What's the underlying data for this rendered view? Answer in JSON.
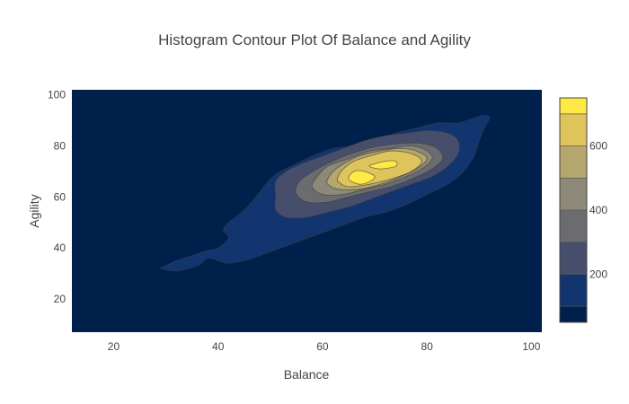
{
  "chart_data": {
    "type": "contour",
    "title": "Histogram Contour Plot Of Balance and Agility",
    "xlabel": "Balance",
    "ylabel": "Agility",
    "xlim": [
      12,
      102
    ],
    "ylim": [
      7,
      102
    ],
    "xticks": [
      "20",
      "40",
      "60",
      "80",
      "100"
    ],
    "xtick_values": [
      20,
      40,
      60,
      80,
      100
    ],
    "yticks": [
      "20",
      "40",
      "60",
      "80",
      "100"
    ],
    "ytick_values": [
      20,
      40,
      60,
      80,
      100
    ],
    "colorscale": "cividis",
    "colorbar": {
      "range": [
        50,
        750
      ],
      "ticks": [
        "200",
        "400",
        "600"
      ],
      "tick_values": [
        200,
        400,
        600
      ],
      "bands": [
        {
          "from": 50,
          "to": 100,
          "color": "#00204c"
        },
        {
          "from": 100,
          "to": 200,
          "color": "#123570"
        },
        {
          "from": 200,
          "to": 300,
          "color": "#474e6c"
        },
        {
          "from": 300,
          "to": 400,
          "color": "#6b6c70"
        },
        {
          "from": 400,
          "to": 500,
          "color": "#8d8877"
        },
        {
          "from": 500,
          "to": 600,
          "color": "#b4a66d"
        },
        {
          "from": 600,
          "to": 700,
          "color": "#dfc45c"
        },
        {
          "from": 700,
          "to": 750,
          "color": "#ffe945"
        }
      ]
    },
    "background_level_color": "#00204c",
    "levels": [
      {
        "count": 100,
        "color": "#123570",
        "points": [
          [
            29,
            32
          ],
          [
            32,
            31
          ],
          [
            36,
            33
          ],
          [
            38,
            36
          ],
          [
            40,
            35
          ],
          [
            42,
            34
          ],
          [
            45,
            35
          ],
          [
            48,
            37
          ],
          [
            52,
            40
          ],
          [
            56,
            43
          ],
          [
            60,
            46
          ],
          [
            64,
            49
          ],
          [
            68,
            52
          ],
          [
            72,
            54
          ],
          [
            76,
            57
          ],
          [
            80,
            61
          ],
          [
            84,
            65
          ],
          [
            87,
            70
          ],
          [
            89,
            76
          ],
          [
            90,
            82
          ],
          [
            91,
            87
          ],
          [
            92,
            91
          ],
          [
            91,
            92
          ],
          [
            89,
            91
          ],
          [
            86,
            89
          ],
          [
            82,
            89
          ],
          [
            78,
            87
          ],
          [
            74,
            85
          ],
          [
            70,
            82
          ],
          [
            66,
            80
          ],
          [
            62,
            79
          ],
          [
            58,
            76
          ],
          [
            55,
            73
          ],
          [
            52,
            70
          ],
          [
            50,
            67
          ],
          [
            48,
            62
          ],
          [
            46,
            57
          ],
          [
            44,
            53
          ],
          [
            42,
            50
          ],
          [
            41,
            47
          ],
          [
            42,
            44
          ],
          [
            40,
            40
          ],
          [
            38,
            39
          ],
          [
            35,
            37
          ],
          [
            32,
            35
          ],
          [
            30,
            33
          ]
        ]
      },
      {
        "count": 200,
        "color": "#474e6c",
        "points": [
          [
            51,
            55
          ],
          [
            53,
            52
          ],
          [
            57,
            52
          ],
          [
            61,
            54
          ],
          [
            65,
            56
          ],
          [
            69,
            59
          ],
          [
            73,
            62
          ],
          [
            77,
            65
          ],
          [
            81,
            68
          ],
          [
            84,
            72
          ],
          [
            86,
            77
          ],
          [
            86,
            82
          ],
          [
            84,
            85
          ],
          [
            80,
            86
          ],
          [
            76,
            85
          ],
          [
            72,
            84
          ],
          [
            68,
            82
          ],
          [
            64,
            79
          ],
          [
            60,
            76
          ],
          [
            56,
            73
          ],
          [
            53,
            70
          ],
          [
            51,
            66
          ],
          [
            51,
            60
          ]
        ]
      },
      {
        "count": 300,
        "color": "#6b6c70",
        "points": [
          [
            55,
            61
          ],
          [
            57,
            58
          ],
          [
            61,
            58
          ],
          [
            65,
            60
          ],
          [
            69,
            62
          ],
          [
            73,
            64
          ],
          [
            77,
            67
          ],
          [
            81,
            71
          ],
          [
            83,
            75
          ],
          [
            82,
            79
          ],
          [
            79,
            81
          ],
          [
            75,
            81
          ],
          [
            71,
            80
          ],
          [
            67,
            78
          ],
          [
            63,
            75
          ],
          [
            59,
            71
          ],
          [
            56,
            67
          ],
          [
            55,
            64
          ]
        ]
      },
      {
        "count": 400,
        "color": "#8d8877",
        "points": [
          [
            58,
            64
          ],
          [
            60,
            61
          ],
          [
            64,
            61
          ],
          [
            68,
            63
          ],
          [
            72,
            65
          ],
          [
            76,
            68
          ],
          [
            79,
            71
          ],
          [
            81,
            75
          ],
          [
            80,
            78
          ],
          [
            77,
            80
          ],
          [
            73,
            79
          ],
          [
            69,
            78
          ],
          [
            65,
            75
          ],
          [
            61,
            72
          ],
          [
            59,
            68
          ]
        ]
      },
      {
        "count": 500,
        "color": "#b4a66d",
        "points": [
          [
            61,
            65
          ],
          [
            63,
            63
          ],
          [
            67,
            63
          ],
          [
            71,
            65
          ],
          [
            75,
            68
          ],
          [
            78,
            71
          ],
          [
            80,
            75
          ],
          [
            78,
            78
          ],
          [
            75,
            79
          ],
          [
            71,
            78
          ],
          [
            67,
            76
          ],
          [
            64,
            73
          ],
          [
            62,
            70
          ],
          [
            61,
            67
          ]
        ]
      },
      {
        "count": 600,
        "color": "#dfc45c",
        "points": [
          [
            63,
            66
          ],
          [
            65,
            64
          ],
          [
            69,
            65
          ],
          [
            73,
            67
          ],
          [
            77,
            70
          ],
          [
            79,
            74
          ],
          [
            77,
            77
          ],
          [
            73,
            78
          ],
          [
            69,
            76
          ],
          [
            66,
            74
          ],
          [
            64,
            71
          ],
          [
            63,
            68
          ]
        ]
      },
      {
        "count": 700,
        "color": "#ffe945",
        "points": [
          [
            65,
            67
          ],
          [
            67,
            65
          ],
          [
            69,
            66
          ],
          [
            70,
            68
          ],
          [
            68,
            70
          ],
          [
            66,
            70
          ]
        ]
      },
      {
        "count": 700,
        "color": "#ffe945",
        "points": [
          [
            69,
            72
          ],
          [
            71,
            71
          ],
          [
            74,
            72
          ],
          [
            74,
            74
          ],
          [
            72,
            74
          ],
          [
            70,
            73
          ]
        ]
      }
    ]
  }
}
